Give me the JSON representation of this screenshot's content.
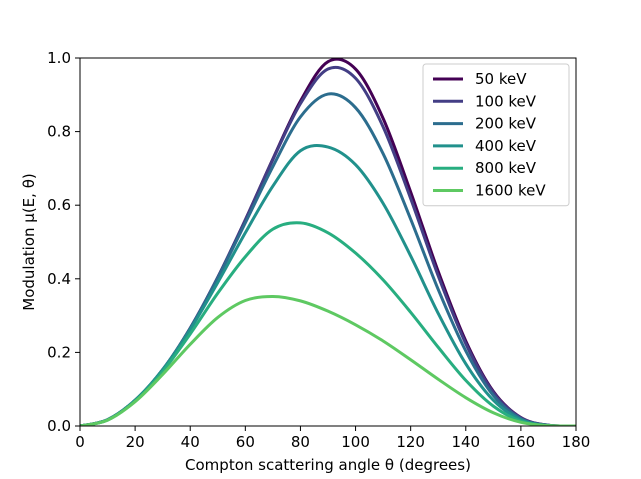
{
  "chart_data": {
    "type": "line",
    "title": "",
    "xlabel": "Compton scattering angle θ (degrees)",
    "ylabel": "Modulation μ(E, θ)",
    "xlim": [
      0,
      180
    ],
    "ylim": [
      0,
      1.0
    ],
    "x_ticks": [
      0,
      20,
      40,
      60,
      80,
      100,
      120,
      140,
      160,
      180
    ],
    "x_tick_labels": [
      "0",
      "20",
      "40",
      "60",
      "80",
      "100",
      "120",
      "140",
      "160",
      "180"
    ],
    "y_ticks": [
      0.0,
      0.2,
      0.4,
      0.6,
      0.8,
      1.0
    ],
    "y_tick_labels": [
      "0.0",
      "0.2",
      "0.4",
      "0.6",
      "0.8",
      "1.0"
    ],
    "grid": false,
    "legend_position": "top-right",
    "x": [
      0,
      10,
      20,
      30,
      40,
      50,
      60,
      70,
      80,
      90,
      100,
      110,
      120,
      130,
      140,
      150,
      160,
      170,
      180
    ],
    "series": [
      {
        "name": "50 keV",
        "color": "#440154",
        "values": [
          0.0,
          0.017,
          0.07,
          0.153,
          0.266,
          0.404,
          0.56,
          0.726,
          0.883,
          0.99,
          0.97,
          0.836,
          0.636,
          0.42,
          0.231,
          0.094,
          0.023,
          0.002,
          0.0
        ]
      },
      {
        "name": "100 keV",
        "color": "#433e85",
        "values": [
          0.0,
          0.017,
          0.07,
          0.153,
          0.266,
          0.404,
          0.56,
          0.724,
          0.876,
          0.97,
          0.945,
          0.813,
          0.618,
          0.408,
          0.224,
          0.091,
          0.022,
          0.002,
          0.0
        ]
      },
      {
        "name": "200 keV",
        "color": "#2c6d8e",
        "values": [
          0.0,
          0.017,
          0.07,
          0.153,
          0.265,
          0.402,
          0.552,
          0.705,
          0.84,
          0.902,
          0.865,
          0.74,
          0.562,
          0.371,
          0.204,
          0.083,
          0.02,
          0.002,
          0.0
        ]
      },
      {
        "name": "400 keV",
        "color": "#21918c",
        "values": [
          0.0,
          0.017,
          0.07,
          0.153,
          0.262,
          0.39,
          0.525,
          0.652,
          0.748,
          0.758,
          0.71,
          0.605,
          0.462,
          0.306,
          0.169,
          0.07,
          0.017,
          0.001,
          0.0
        ]
      },
      {
        "name": "800 keV",
        "color": "#28ae80",
        "values": [
          0.0,
          0.016,
          0.068,
          0.148,
          0.25,
          0.361,
          0.46,
          0.535,
          0.552,
          0.525,
          0.47,
          0.397,
          0.309,
          0.214,
          0.124,
          0.054,
          0.013,
          0.001,
          0.0
        ]
      },
      {
        "name": "1600 keV",
        "color": "#5ec962",
        "values": [
          0.0,
          0.016,
          0.066,
          0.14,
          0.222,
          0.295,
          0.341,
          0.352,
          0.34,
          0.312,
          0.275,
          0.231,
          0.18,
          0.127,
          0.077,
          0.036,
          0.01,
          0.001,
          0.0
        ]
      }
    ]
  }
}
